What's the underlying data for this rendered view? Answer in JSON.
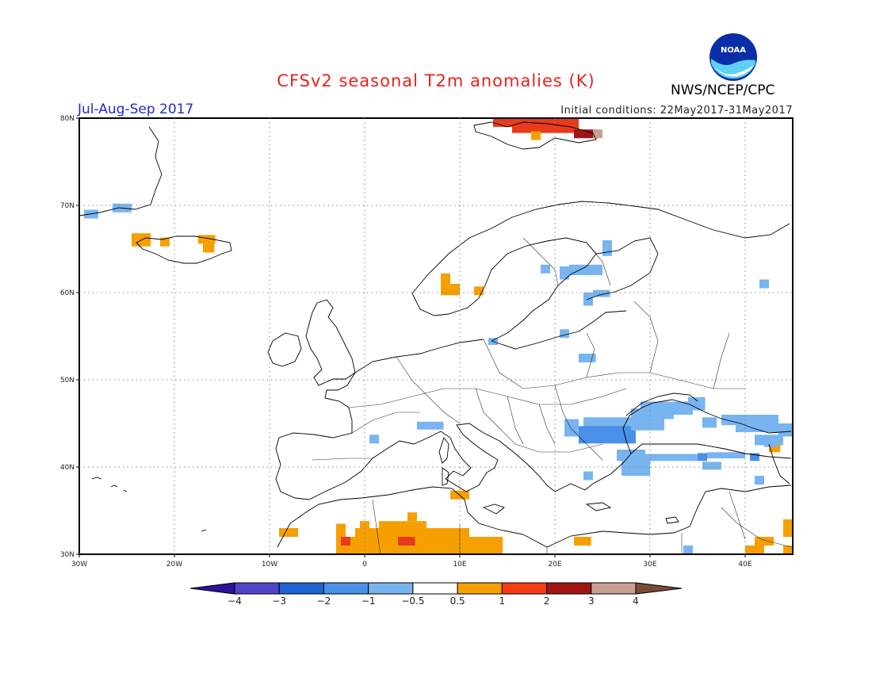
{
  "header": {
    "title": "CFSv2 seasonal T2m anomalies (K)",
    "season": "Jul-Aug-Sep 2017",
    "initial_conditions": "Initial conditions: 22May2017-31May2017",
    "agency": "NWS/NCEP/CPC",
    "logo_text": "NOAA"
  },
  "map": {
    "lon_range": [
      -30,
      45
    ],
    "lat_range": [
      30,
      80
    ],
    "lon_ticks": [
      {
        "v": -30,
        "label": "30W"
      },
      {
        "v": -20,
        "label": "20W"
      },
      {
        "v": -10,
        "label": "10W"
      },
      {
        "v": 0,
        "label": "0"
      },
      {
        "v": 10,
        "label": "10E"
      },
      {
        "v": 20,
        "label": "20E"
      },
      {
        "v": 30,
        "label": "30E"
      },
      {
        "v": 40,
        "label": "40E"
      }
    ],
    "lat_ticks": [
      {
        "v": 30,
        "label": "30N"
      },
      {
        "v": 40,
        "label": "40N"
      },
      {
        "v": 50,
        "label": "50N"
      },
      {
        "v": 60,
        "label": "60N"
      },
      {
        "v": 70,
        "label": "70N"
      },
      {
        "v": 80,
        "label": "80N"
      }
    ],
    "grid": "dotted",
    "anomaly_cells": [
      {
        "lon": -29.5,
        "lat": 68.5,
        "w": 1.5,
        "h": 1,
        "c": "#78b4f0"
      },
      {
        "lon": -26.5,
        "lat": 69.2,
        "w": 2,
        "h": 1,
        "c": "#78b4f0"
      },
      {
        "lon": -24.5,
        "lat": 65.3,
        "w": 2,
        "h": 1.5,
        "c": "#f5a000"
      },
      {
        "lon": -21.5,
        "lat": 65.3,
        "w": 1,
        "h": 1,
        "c": "#f5a000"
      },
      {
        "lon": -17.5,
        "lat": 65.6,
        "w": 1.8,
        "h": 1,
        "c": "#f5a000"
      },
      {
        "lon": -17,
        "lat": 64.6,
        "w": 1.2,
        "h": 1,
        "c": "#f5a000"
      },
      {
        "lon": 8,
        "lat": 61,
        "w": 1,
        "h": 1.2,
        "c": "#f5a000"
      },
      {
        "lon": 8,
        "lat": 59.7,
        "w": 2,
        "h": 1.3,
        "c": "#f5a000"
      },
      {
        "lon": 11.5,
        "lat": 59.7,
        "w": 1,
        "h": 1,
        "c": "#f5a000"
      },
      {
        "lon": 13.5,
        "lat": 79,
        "w": 2,
        "h": 1,
        "c": "#e83a1c"
      },
      {
        "lon": 15.5,
        "lat": 78.3,
        "w": 7,
        "h": 1.7,
        "c": "#e83a1c"
      },
      {
        "lon": 17.5,
        "lat": 77.5,
        "w": 1,
        "h": 1,
        "c": "#f5a000"
      },
      {
        "lon": 22,
        "lat": 77.7,
        "w": 2.5,
        "h": 1,
        "c": "#a01414"
      },
      {
        "lon": 24,
        "lat": 77.7,
        "w": 1,
        "h": 1,
        "c": "#c8a090"
      },
      {
        "lon": 18.5,
        "lat": 62.2,
        "w": 1,
        "h": 1,
        "c": "#78b4f0"
      },
      {
        "lon": 20.5,
        "lat": 61.5,
        "w": 1,
        "h": 1.5,
        "c": "#78b4f0"
      },
      {
        "lon": 21.5,
        "lat": 62,
        "w": 3.5,
        "h": 1.2,
        "c": "#78b4f0"
      },
      {
        "lon": 25,
        "lat": 64.2,
        "w": 1,
        "h": 1.8,
        "c": "#78b4f0"
      },
      {
        "lon": 23,
        "lat": 58.5,
        "w": 1,
        "h": 1.5,
        "c": "#78b4f0"
      },
      {
        "lon": 24,
        "lat": 59.5,
        "w": 1.8,
        "h": 0.8,
        "c": "#78b4f0"
      },
      {
        "lon": 20.5,
        "lat": 54.8,
        "w": 1,
        "h": 1,
        "c": "#78b4f0"
      },
      {
        "lon": 22.5,
        "lat": 52,
        "w": 1.8,
        "h": 1,
        "c": "#78b4f0"
      },
      {
        "lon": 13,
        "lat": 54,
        "w": 1,
        "h": 0.8,
        "c": "#78b4f0"
      },
      {
        "lon": 41.5,
        "lat": 60.5,
        "w": 1,
        "h": 1,
        "c": "#78b4f0"
      },
      {
        "lon": 5.5,
        "lat": 44.3,
        "w": 2.8,
        "h": 0.9,
        "c": "#78b4f0"
      },
      {
        "lon": 0.5,
        "lat": 42.7,
        "w": 1,
        "h": 1,
        "c": "#78b4f0"
      },
      {
        "lon": 21,
        "lat": 43.5,
        "w": 1.5,
        "h": 2,
        "c": "#78b4f0"
      },
      {
        "lon": 23,
        "lat": 44.5,
        "w": 5.5,
        "h": 1.2,
        "c": "#78b4f0"
      },
      {
        "lon": 22.5,
        "lat": 42.7,
        "w": 6,
        "h": 2,
        "c": "#4a90e8"
      },
      {
        "lon": 28,
        "lat": 44.2,
        "w": 3.5,
        "h": 2.5,
        "c": "#78b4f0"
      },
      {
        "lon": 29,
        "lat": 45.5,
        "w": 3.5,
        "h": 2,
        "c": "#78b4f0"
      },
      {
        "lon": 32.5,
        "lat": 46,
        "w": 2,
        "h": 1.5,
        "c": "#78b4f0"
      },
      {
        "lon": 34,
        "lat": 46.5,
        "w": 1.8,
        "h": 1.5,
        "c": "#78b4f0"
      },
      {
        "lon": 35.5,
        "lat": 44.5,
        "w": 1.5,
        "h": 1.2,
        "c": "#78b4f0"
      },
      {
        "lon": 37.5,
        "lat": 44.8,
        "w": 3,
        "h": 1.2,
        "c": "#78b4f0"
      },
      {
        "lon": 39,
        "lat": 44,
        "w": 4.5,
        "h": 2,
        "c": "#78b4f0"
      },
      {
        "lon": 43.5,
        "lat": 43.5,
        "w": 1.5,
        "h": 1.5,
        "c": "#78b4f0"
      },
      {
        "lon": 41,
        "lat": 42.5,
        "w": 3,
        "h": 1.2,
        "c": "#78b4f0"
      },
      {
        "lon": 26.5,
        "lat": 40.7,
        "w": 3,
        "h": 1.3,
        "c": "#78b4f0"
      },
      {
        "lon": 27,
        "lat": 39,
        "w": 3,
        "h": 1.8,
        "c": "#78b4f0"
      },
      {
        "lon": 29,
        "lat": 40.7,
        "w": 6,
        "h": 0.8,
        "c": "#78b4f0"
      },
      {
        "lon": 35,
        "lat": 40.7,
        "w": 1,
        "h": 0.9,
        "c": "#4a90e8"
      },
      {
        "lon": 35.5,
        "lat": 39.7,
        "w": 2,
        "h": 0.9,
        "c": "#78b4f0"
      },
      {
        "lon": 36,
        "lat": 41,
        "w": 4,
        "h": 0.7,
        "c": "#78b4f0"
      },
      {
        "lon": 40.5,
        "lat": 40.7,
        "w": 1,
        "h": 0.9,
        "c": "#4a90e8"
      },
      {
        "lon": 42.5,
        "lat": 41.7,
        "w": 1.2,
        "h": 1,
        "c": "#f5a000"
      },
      {
        "lon": 42,
        "lat": 42.3,
        "w": 1.5,
        "h": 1,
        "c": "#78b4f0"
      },
      {
        "lon": 41,
        "lat": 38,
        "w": 1,
        "h": 1,
        "c": "#78b4f0"
      },
      {
        "lon": 23,
        "lat": 38.5,
        "w": 1,
        "h": 1,
        "c": "#78b4f0"
      },
      {
        "lon": 9,
        "lat": 36.3,
        "w": 2,
        "h": 1,
        "c": "#f5a000"
      },
      {
        "lon": -9,
        "lat": 32,
        "w": 2,
        "h": 1,
        "c": "#f5a000"
      },
      {
        "lon": -3,
        "lat": 32,
        "w": 1,
        "h": 1.5,
        "c": "#f5a000"
      },
      {
        "lon": -3,
        "lat": 30,
        "w": 2,
        "h": 2,
        "c": "#f5a000"
      },
      {
        "lon": -2.5,
        "lat": 31,
        "w": 1,
        "h": 1,
        "c": "#e83a1c"
      },
      {
        "lon": -1,
        "lat": 30,
        "w": 10,
        "h": 3,
        "c": "#f5a000"
      },
      {
        "lon": -0.5,
        "lat": 32.8,
        "w": 1,
        "h": 1,
        "c": "#f5a000"
      },
      {
        "lon": 1.5,
        "lat": 32.8,
        "w": 5,
        "h": 1,
        "c": "#f5a000"
      },
      {
        "lon": 4.5,
        "lat": 33.8,
        "w": 1,
        "h": 1,
        "c": "#f5a000"
      },
      {
        "lon": 3.5,
        "lat": 31,
        "w": 1.8,
        "h": 1,
        "c": "#e83a1c"
      },
      {
        "lon": 9,
        "lat": 30,
        "w": 2,
        "h": 3,
        "c": "#f5a000"
      },
      {
        "lon": 11,
        "lat": 30,
        "w": 3.5,
        "h": 2,
        "c": "#f5a000"
      },
      {
        "lon": 22,
        "lat": 31,
        "w": 1.8,
        "h": 1,
        "c": "#f5a000"
      },
      {
        "lon": 33.5,
        "lat": 30,
        "w": 1,
        "h": 1,
        "c": "#78b4f0"
      },
      {
        "lon": 40,
        "lat": 30,
        "w": 2,
        "h": 1,
        "c": "#f5a000"
      },
      {
        "lon": 41,
        "lat": 31,
        "w": 2,
        "h": 1,
        "c": "#f5a000"
      },
      {
        "lon": 44,
        "lat": 32,
        "w": 1,
        "h": 2,
        "c": "#f5a000"
      },
      {
        "lon": 44,
        "lat": 30,
        "w": 1,
        "h": 1,
        "c": "#f5a000"
      }
    ]
  },
  "colorbar": {
    "labels": [
      "−4",
      "−3",
      "−2",
      "−1",
      "−0.5",
      "0.5",
      "1",
      "2",
      "3",
      "4"
    ],
    "low_arrow_color": "#30109c",
    "high_arrow_color": "#7a4a3a",
    "segments": [
      {
        "color": "#5045c8"
      },
      {
        "color": "#1e64d2"
      },
      {
        "color": "#4a90e8"
      },
      {
        "color": "#78b4f0"
      },
      {
        "color": "#ffffff"
      },
      {
        "color": "#f5a000"
      },
      {
        "color": "#f53c14"
      },
      {
        "color": "#a01414"
      },
      {
        "color": "#c8a090"
      }
    ]
  }
}
